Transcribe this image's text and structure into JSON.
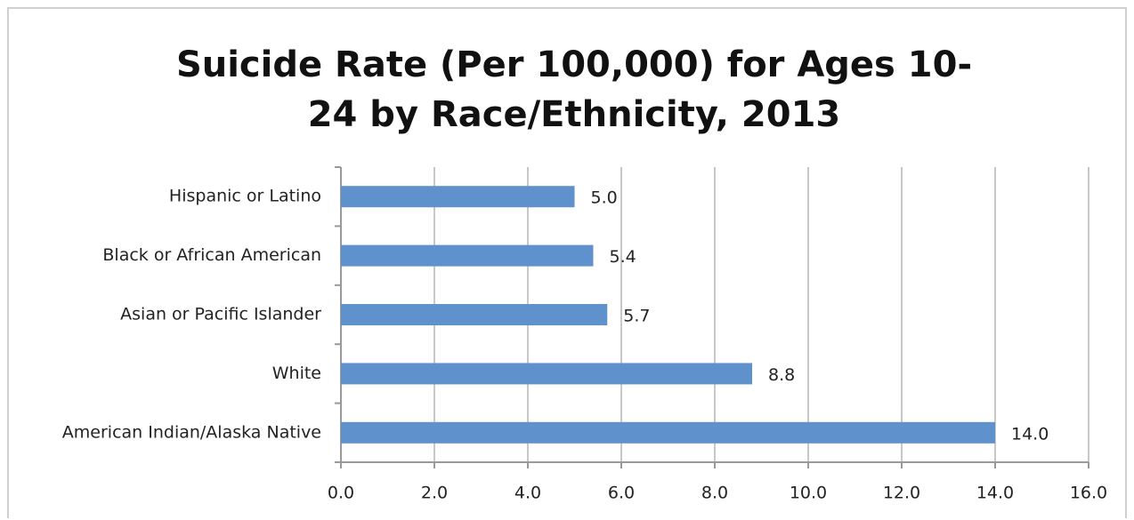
{
  "chart_data": {
    "type": "bar",
    "orientation": "horizontal",
    "title": "Suicide Rate (Per 100,000) for Ages 10-24 by Race/Ethnicity, 2013",
    "categories": [
      "Hispanic or Latino",
      "Black or African American",
      "Asian or Pacific Islander",
      "White",
      "American Indian/Alaska Native"
    ],
    "values": [
      5.0,
      5.4,
      5.7,
      8.8,
      14.0
    ],
    "value_labels": [
      "5.0",
      "5.4",
      "5.7",
      "8.8",
      "14.0"
    ],
    "color": "#5f92cd",
    "xlim": [
      0,
      16
    ],
    "xticks": [
      {
        "value": 0,
        "label": "0.0"
      },
      {
        "value": 2,
        "label": "2.0"
      },
      {
        "value": 4,
        "label": "4.0"
      },
      {
        "value": 6,
        "label": "6.0"
      },
      {
        "value": 8,
        "label": "8.0"
      },
      {
        "value": 10,
        "label": "10.0"
      },
      {
        "value": 12,
        "label": "12.0"
      },
      {
        "value": 14,
        "label": "14.0"
      },
      {
        "value": 16,
        "label": "16.0"
      }
    ],
    "grid": true
  }
}
